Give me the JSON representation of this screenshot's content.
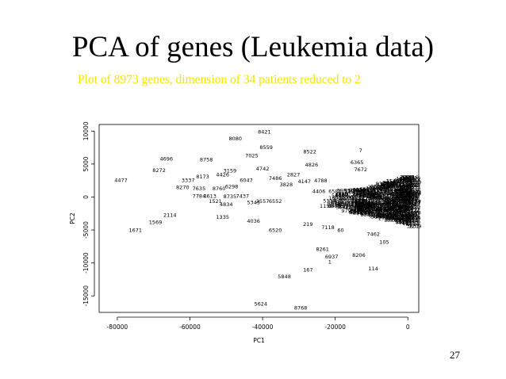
{
  "slide": {
    "title": "PCA of genes (Leukemia data)",
    "subtitle": "Plot of 8973 genes, dimension of 34 patients reduced to 2",
    "page_number": "27",
    "subtitle_color": "#f5e300"
  },
  "chart_data": {
    "type": "scatter",
    "title": "",
    "xlabel": "PC1",
    "ylabel": "PC2",
    "xlim": [
      -85000,
      3000
    ],
    "ylim": [
      -17500,
      11000
    ],
    "x_ticks": [
      -80000,
      -60000,
      -40000,
      -20000,
      0
    ],
    "x_tick_labels": [
      "-80000",
      "-60000",
      "-40000",
      "-20000",
      "0"
    ],
    "y_ticks": [
      -15000,
      -10000,
      -5000,
      0,
      5000,
      10000
    ],
    "y_tick_labels": [
      "-15000",
      "-10000",
      "-5000",
      "0",
      "5000",
      "10000"
    ],
    "grid": false,
    "marker": "text-label",
    "labeled_points": [
      {
        "label": "8421",
        "x": -39500,
        "y": 9900
      },
      {
        "label": "8080",
        "x": -47500,
        "y": 8900
      },
      {
        "label": "8559",
        "x": -39000,
        "y": 7600
      },
      {
        "label": "7025",
        "x": -43000,
        "y": 6300
      },
      {
        "label": "8522",
        "x": -27000,
        "y": 6900
      },
      {
        "label": "7",
        "x": -13000,
        "y": 7100
      },
      {
        "label": "4696",
        "x": -66500,
        "y": 5800
      },
      {
        "label": "8758",
        "x": -55500,
        "y": 5700
      },
      {
        "label": "4826",
        "x": -26500,
        "y": 4900
      },
      {
        "label": "6365",
        "x": -14000,
        "y": 5300
      },
      {
        "label": "8272",
        "x": -68500,
        "y": 4100
      },
      {
        "label": "4742",
        "x": -40000,
        "y": 4300
      },
      {
        "label": "3159",
        "x": -49000,
        "y": 4000
      },
      {
        "label": "7672",
        "x": -13000,
        "y": 4200
      },
      {
        "label": "4477",
        "x": -79000,
        "y": 2600
      },
      {
        "label": "3337",
        "x": -60500,
        "y": 2600
      },
      {
        "label": "8173",
        "x": -56500,
        "y": 3100
      },
      {
        "label": "4426",
        "x": -51000,
        "y": 3400
      },
      {
        "label": "2827",
        "x": -31500,
        "y": 3400
      },
      {
        "label": "6047",
        "x": -44500,
        "y": 2600
      },
      {
        "label": "7486",
        "x": -36500,
        "y": 2900
      },
      {
        "label": "4147",
        "x": -28500,
        "y": 2400
      },
      {
        "label": "4788",
        "x": -24000,
        "y": 2500
      },
      {
        "label": "8270",
        "x": -62000,
        "y": 1500
      },
      {
        "label": "7635",
        "x": -57500,
        "y": 1300
      },
      {
        "label": "8760",
        "x": -52000,
        "y": 1300
      },
      {
        "label": "6298",
        "x": -48500,
        "y": 1600
      },
      {
        "label": "3828",
        "x": -33500,
        "y": 1900
      },
      {
        "label": "4406",
        "x": -24500,
        "y": 900
      },
      {
        "label": "7784",
        "x": -57500,
        "y": 200
      },
      {
        "label": "4613",
        "x": -54500,
        "y": 200
      },
      {
        "label": "8735",
        "x": -49000,
        "y": 100
      },
      {
        "label": "7437",
        "x": -45500,
        "y": 200
      },
      {
        "label": "1521",
        "x": -53000,
        "y": -600
      },
      {
        "label": "4834",
        "x": -50000,
        "y": -1100
      },
      {
        "label": "5343",
        "x": -42500,
        "y": -800
      },
      {
        "label": "2557",
        "x": -40000,
        "y": -600
      },
      {
        "label": "6552",
        "x": -36500,
        "y": -600
      },
      {
        "label": "1159",
        "x": -22500,
        "y": -1300
      },
      {
        "label": "2114",
        "x": -65500,
        "y": -2700
      },
      {
        "label": "1335",
        "x": -51000,
        "y": -3000
      },
      {
        "label": "4036",
        "x": -42500,
        "y": -3600
      },
      {
        "label": "1569",
        "x": -69500,
        "y": -3800
      },
      {
        "label": "219",
        "x": -27500,
        "y": -4100
      },
      {
        "label": "7118",
        "x": -22000,
        "y": -4600
      },
      {
        "label": "1671",
        "x": -75000,
        "y": -5000
      },
      {
        "label": "6520",
        "x": -36500,
        "y": -5000
      },
      {
        "label": "60",
        "x": -18500,
        "y": -5000
      },
      {
        "label": "7462",
        "x": -9500,
        "y": -5600
      },
      {
        "label": "105",
        "x": -6500,
        "y": -6800
      },
      {
        "label": "8261",
        "x": -23500,
        "y": -7900
      },
      {
        "label": "6937",
        "x": -21000,
        "y": -9000
      },
      {
        "label": "1",
        "x": -21500,
        "y": -9800
      },
      {
        "label": "8206",
        "x": -13500,
        "y": -8800
      },
      {
        "label": "167",
        "x": -27500,
        "y": -11000
      },
      {
        "label": "114",
        "x": -9500,
        "y": -10800
      },
      {
        "label": "5848",
        "x": -34000,
        "y": -12000
      },
      {
        "label": "5624",
        "x": -40500,
        "y": -16200
      },
      {
        "label": "8768",
        "x": -29500,
        "y": -16800
      }
    ],
    "dense_cluster": {
      "x_range": [
        -22000,
        2000
      ],
      "y_range": [
        -4500,
        3500
      ]
    }
  }
}
